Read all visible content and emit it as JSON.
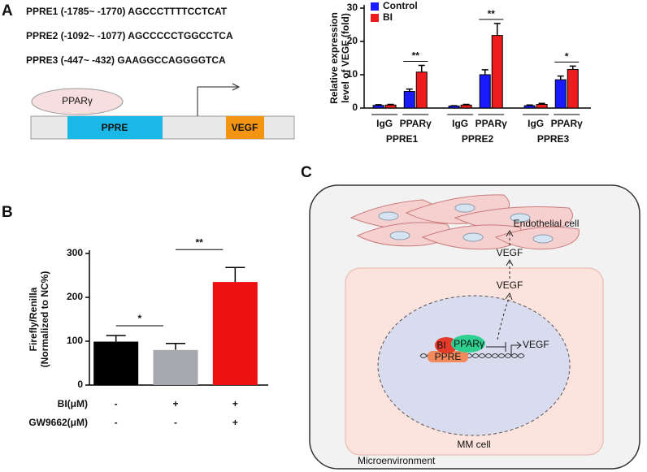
{
  "panel_labels": [
    "A",
    "B",
    "C"
  ],
  "panel_a": {
    "sequences": [
      "PPRE1 (-1785~ -1770) AGCCCTTTTCCTCAT",
      "PPRE2 (-1092~ -1077) AGCCCCCTGGCCTCA",
      "PPRE3 (-447~ -432) GAAGGCCAGGGGTCA"
    ],
    "protein": "PPARγ",
    "element": "PPRE",
    "gene": "VEGF"
  },
  "chart_data": [
    {
      "type": "bar",
      "ylabel": [
        "Relative expression",
        "level of VEGF (fold)"
      ],
      "groups": [
        "PPRE1",
        "PPRE2",
        "PPRE3"
      ],
      "subcategories": [
        "IgG",
        "PPARγ"
      ],
      "series": [
        {
          "name": "Control",
          "color": "#1a1aff",
          "values": [
            0.8,
            5,
            0.6,
            10,
            0.7,
            8.5
          ],
          "errors": [
            0.2,
            0.7,
            0.1,
            1.5,
            0.2,
            1.1
          ]
        },
        {
          "name": "BI",
          "color": "#ee1c1c",
          "values": [
            0.9,
            10.8,
            0.9,
            21.8,
            1.1,
            11.6
          ],
          "errors": [
            0.2,
            2,
            0.2,
            3.6,
            0.3,
            1
          ]
        }
      ],
      "significance": [
        null,
        "**",
        null,
        "**",
        null,
        "*"
      ],
      "ylim": [
        0,
        30
      ],
      "yticks": [
        0,
        10,
        20,
        30
      ],
      "legend": "upper left"
    },
    {
      "type": "bar",
      "ylabel": [
        "Firefly/Renilla",
        "(Normalized to NC%)"
      ],
      "values": [
        99,
        80,
        235
      ],
      "errors": [
        14,
        15,
        33
      ],
      "colors": [
        "#000000",
        "#a7a7ae",
        "#ee1111"
      ],
      "conditions": [
        {
          "name": "BI(μM)",
          "values": [
            "-",
            "+",
            "+"
          ]
        },
        {
          "name": "GW9662(μM)",
          "values": [
            "-",
            "-",
            "+"
          ]
        }
      ],
      "comparisons": [
        "*",
        "**"
      ],
      "ylim": [
        0,
        300
      ],
      "yticks": [
        0,
        100,
        200,
        300
      ]
    }
  ],
  "panel_c": {
    "endothelial": "Endothelial cell",
    "vegf_out": "VEGF",
    "vegf_in": "VEGF",
    "bi": "BI",
    "ppar": "PPARγ",
    "ppre": "PPRE",
    "vegf_gene": "VEGF",
    "mm": "MM cell",
    "environment": "Microenvironment"
  }
}
